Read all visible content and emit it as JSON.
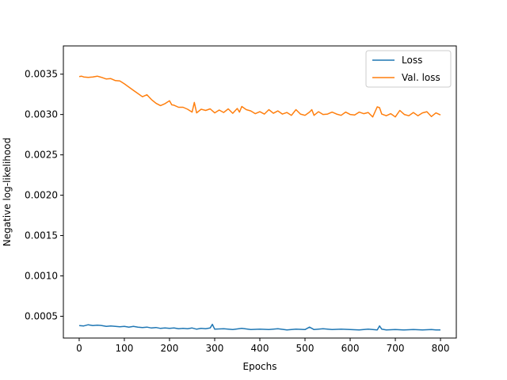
{
  "chart_data": {
    "type": "line",
    "title": "",
    "xlabel": "Epochs",
    "ylabel": "Negative log-likelihood",
    "xlim": [
      -35,
      835
    ],
    "ylim": [
      0.00023,
      0.00385
    ],
    "x_ticks": [
      0,
      100,
      200,
      300,
      400,
      500,
      600,
      700,
      800
    ],
    "x_tick_labels": [
      "0",
      "100",
      "200",
      "300",
      "400",
      "500",
      "600",
      "700",
      "800"
    ],
    "y_ticks": [
      0.0005,
      0.001,
      0.0015,
      0.002,
      0.0025,
      0.003,
      0.0035
    ],
    "y_tick_labels": [
      "0.0005",
      "0.0010",
      "0.0015",
      "0.0020",
      "0.0025",
      "0.0030",
      "0.0035"
    ],
    "grid": false,
    "legend_position": "top-right",
    "series": [
      {
        "name": "Loss",
        "color": "#1f77b4",
        "x": [
          0,
          10,
          20,
          30,
          40,
          50,
          60,
          70,
          80,
          90,
          100,
          110,
          120,
          130,
          140,
          150,
          160,
          170,
          180,
          190,
          200,
          210,
          220,
          230,
          240,
          250,
          260,
          270,
          280,
          290,
          295,
          300,
          320,
          340,
          360,
          380,
          400,
          420,
          440,
          460,
          480,
          500,
          510,
          520,
          540,
          560,
          580,
          600,
          620,
          640,
          660,
          665,
          670,
          680,
          700,
          720,
          740,
          760,
          780,
          790,
          800
        ],
        "values": [
          0.000385,
          0.00038,
          0.000395,
          0.000385,
          0.00039,
          0.000385,
          0.000375,
          0.00038,
          0.000375,
          0.00037,
          0.000375,
          0.000365,
          0.000375,
          0.000365,
          0.00036,
          0.000365,
          0.000355,
          0.00036,
          0.00035,
          0.000355,
          0.00035,
          0.000355,
          0.000345,
          0.00035,
          0.000345,
          0.000355,
          0.00034,
          0.00035,
          0.000345,
          0.000355,
          0.0004,
          0.00034,
          0.000345,
          0.000335,
          0.00035,
          0.000335,
          0.00034,
          0.000335,
          0.000345,
          0.00033,
          0.00034,
          0.000335,
          0.000365,
          0.000335,
          0.000345,
          0.000335,
          0.00034,
          0.000335,
          0.00033,
          0.00034,
          0.00033,
          0.00038,
          0.00034,
          0.00033,
          0.000335,
          0.00033,
          0.000335,
          0.00033,
          0.000335,
          0.00033,
          0.00033
        ]
      },
      {
        "name": "Val. loss",
        "color": "#ff7f0e",
        "x": [
          0,
          5,
          10,
          20,
          30,
          40,
          50,
          60,
          70,
          80,
          90,
          100,
          110,
          120,
          130,
          140,
          150,
          160,
          170,
          180,
          190,
          200,
          205,
          210,
          220,
          230,
          240,
          250,
          255,
          260,
          270,
          280,
          290,
          300,
          310,
          320,
          330,
          340,
          350,
          355,
          360,
          370,
          380,
          390,
          400,
          410,
          420,
          430,
          440,
          450,
          460,
          470,
          480,
          490,
          500,
          510,
          515,
          520,
          530,
          540,
          550,
          560,
          570,
          580,
          590,
          600,
          610,
          620,
          630,
          640,
          650,
          660,
          665,
          670,
          680,
          690,
          700,
          710,
          720,
          730,
          740,
          750,
          760,
          770,
          780,
          790,
          800
        ],
        "values": [
          0.00347,
          0.003475,
          0.003465,
          0.00346,
          0.003465,
          0.003475,
          0.00346,
          0.00344,
          0.003445,
          0.00342,
          0.003415,
          0.00338,
          0.00334,
          0.0033,
          0.00326,
          0.00322,
          0.003245,
          0.003185,
          0.00314,
          0.00311,
          0.003135,
          0.00317,
          0.00312,
          0.003115,
          0.00309,
          0.00309,
          0.003065,
          0.00303,
          0.00315,
          0.00302,
          0.003065,
          0.00305,
          0.00307,
          0.00302,
          0.003055,
          0.003025,
          0.00307,
          0.003015,
          0.003075,
          0.00303,
          0.0031,
          0.00306,
          0.003045,
          0.00301,
          0.003035,
          0.003005,
          0.00306,
          0.003015,
          0.003045,
          0.003005,
          0.003025,
          0.00299,
          0.00306,
          0.003005,
          0.00299,
          0.00303,
          0.00306,
          0.00299,
          0.003035,
          0.003,
          0.003005,
          0.00303,
          0.003005,
          0.00299,
          0.00303,
          0.003,
          0.002995,
          0.00303,
          0.00301,
          0.003025,
          0.00297,
          0.003095,
          0.003085,
          0.003005,
          0.002985,
          0.00301,
          0.00297,
          0.00305,
          0.003,
          0.002985,
          0.003025,
          0.002985,
          0.00302,
          0.003035,
          0.002975,
          0.00302,
          0.002995
        ]
      }
    ]
  }
}
